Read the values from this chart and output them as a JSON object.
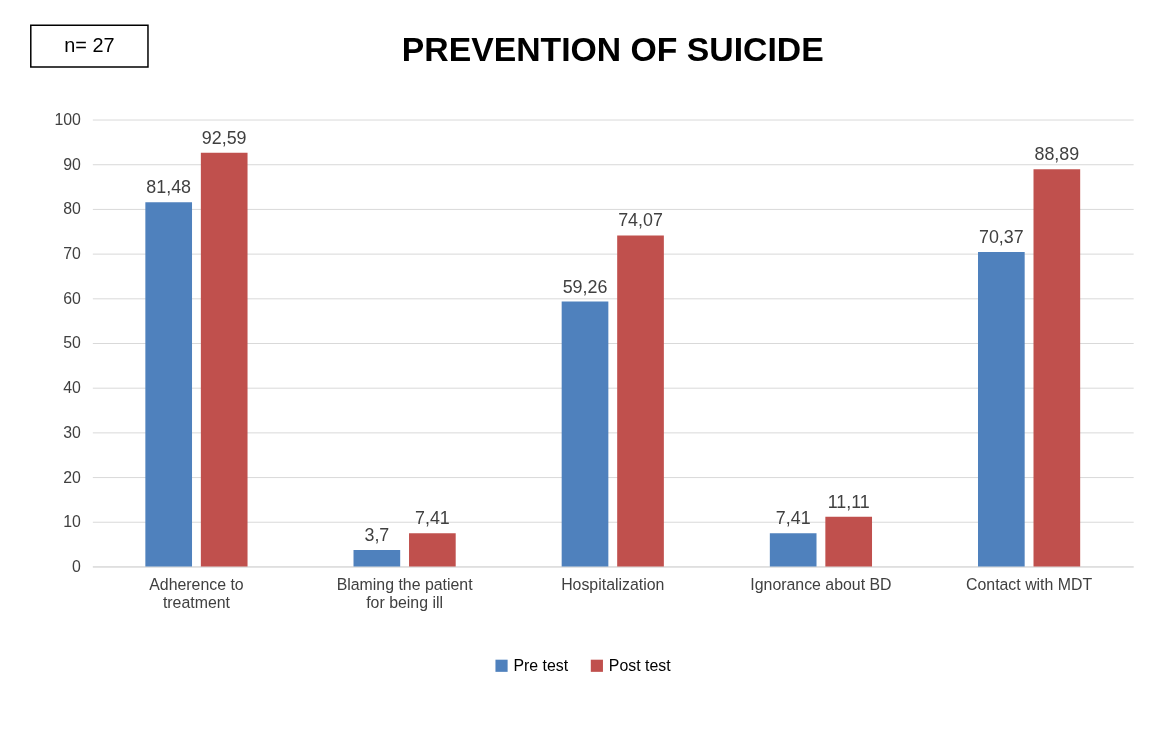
{
  "chart_data": {
    "type": "bar",
    "title": "PREVENTION OF SUICIDE",
    "annotations": [
      "n= 27"
    ],
    "categories": [
      "Adherence to treatment",
      "Blaming the patient for being ill",
      "Hospitalization",
      "Ignorance about BD",
      "Contact with MDT"
    ],
    "series": [
      {
        "name": "Pre test",
        "color": "#4f81bd",
        "values": [
          81.48,
          3.7,
          59.26,
          7.41,
          70.37
        ],
        "value_labels": [
          "81,48",
          "3,7",
          "59,26",
          "7,41",
          "70,37"
        ]
      },
      {
        "name": "Post test",
        "color": "#c0504d",
        "values": [
          92.59,
          7.41,
          74.07,
          11.11,
          88.89
        ],
        "value_labels": [
          "92,59",
          "7,41",
          "74,07",
          "11,11",
          "88,89"
        ]
      }
    ],
    "ylim": [
      0,
      100
    ],
    "yticks": [
      0,
      10,
      20,
      30,
      40,
      50,
      60,
      70,
      80,
      90,
      100
    ],
    "grid": "y",
    "legend": "bottom"
  }
}
